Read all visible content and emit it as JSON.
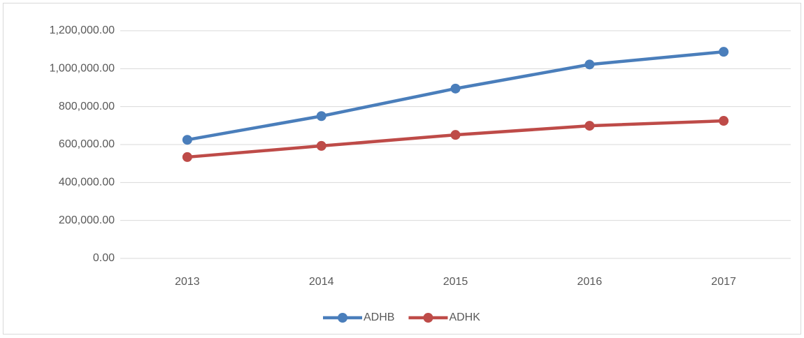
{
  "chart_data": {
    "type": "line",
    "categories": [
      "2013",
      "2014",
      "2015",
      "2016",
      "2017"
    ],
    "series": [
      {
        "name": "ADHB",
        "color": "#4a7ebb",
        "values": [
          625000,
          750000,
          895000,
          1022000,
          1089000
        ]
      },
      {
        "name": "ADHK",
        "color": "#be4b48",
        "values": [
          534000,
          593000,
          651000,
          699000,
          725000
        ]
      }
    ],
    "ylim": [
      0,
      1200000
    ],
    "yticks": [
      {
        "value": 0,
        "label": "0.00"
      },
      {
        "value": 200000,
        "label": "200,000.00"
      },
      {
        "value": 400000,
        "label": "400,000.00"
      },
      {
        "value": 600000,
        "label": "600,000.00"
      },
      {
        "value": 800000,
        "label": "800,000.00"
      },
      {
        "value": 1000000,
        "label": "1,000,000.00"
      },
      {
        "value": 1200000,
        "label": "1,200,000.00"
      }
    ],
    "grid": true,
    "legend": "bottom"
  }
}
